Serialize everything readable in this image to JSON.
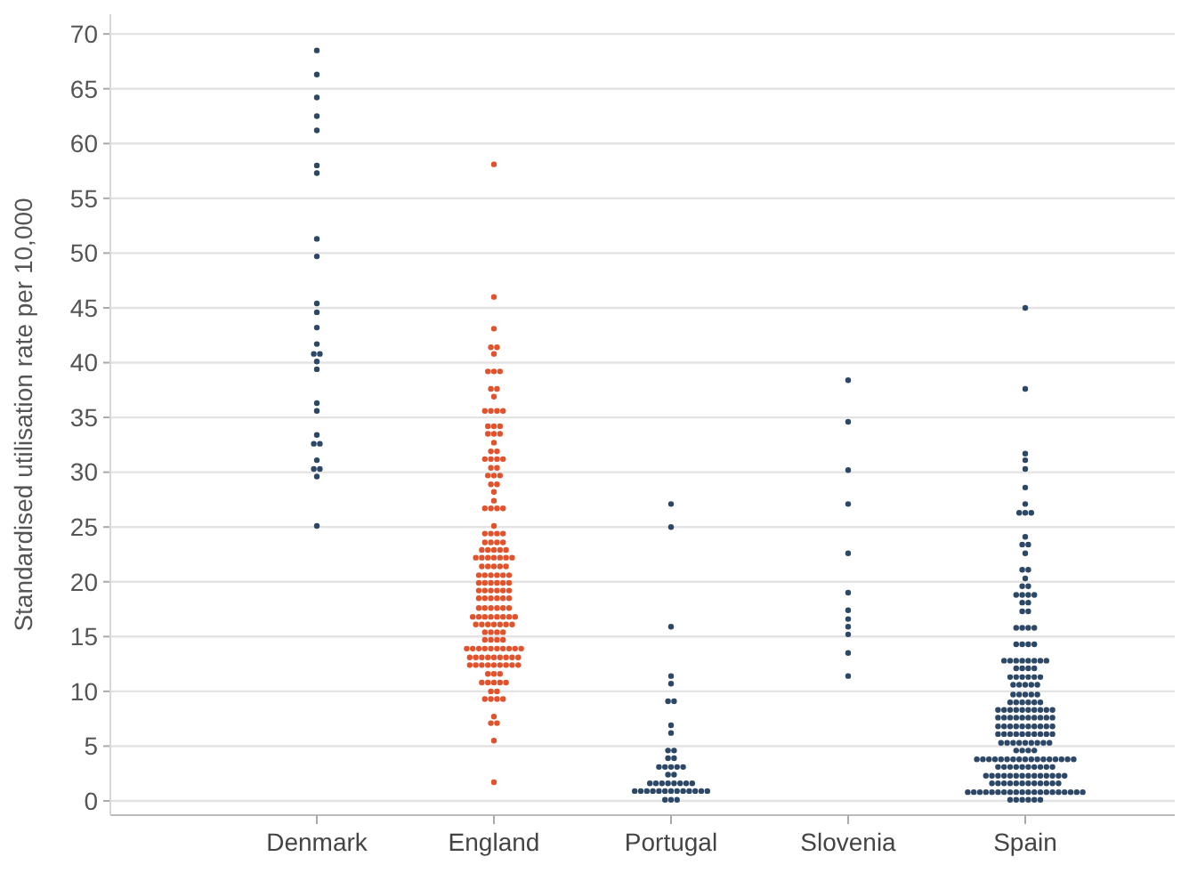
{
  "chart_data": {
    "type": "scatter",
    "ylabel": "Standardised utilisation rate per 10,000",
    "categories": [
      "Denmark",
      "England",
      "Portugal",
      "Slovenia",
      "Spain"
    ],
    "ylim": [
      -1.3,
      71.8
    ],
    "yticks": [
      0,
      5,
      10,
      15,
      20,
      25,
      30,
      35,
      40,
      45,
      50,
      55,
      60,
      65,
      70
    ],
    "grid": "y",
    "marker": "circle",
    "series": [
      {
        "color": "#2d4866",
        "x": [
          "Denmark",
          "Denmark",
          "Denmark",
          "Denmark",
          "Denmark",
          "Denmark",
          "Denmark",
          "Denmark",
          "Denmark",
          "Denmark",
          "Denmark",
          "Denmark",
          "Denmark",
          "Denmark",
          "Denmark",
          "Denmark",
          "Denmark",
          "Denmark",
          "Denmark",
          "Denmark",
          "Denmark",
          "Denmark",
          "Denmark",
          "Denmark",
          "Denmark",
          "Denmark",
          "Denmark"
        ],
        "values": [
          68.5,
          66.3,
          64.2,
          62.5,
          61.2,
          58.0,
          57.3,
          51.3,
          49.7,
          45.4,
          44.6,
          43.2,
          41.7,
          40.8,
          40.8,
          40.1,
          39.4,
          36.3,
          35.6,
          33.4,
          32.6,
          32.6,
          31.1,
          30.3,
          30.3,
          29.6,
          25.1
        ]
      },
      {
        "color": "#e0532c",
        "x": [
          "England",
          "England",
          "England",
          "England",
          "England",
          "England",
          "England",
          "England",
          "England",
          "England",
          "England",
          "England",
          "England",
          "England",
          "England",
          "England",
          "England",
          "England",
          "England",
          "England",
          "England",
          "England",
          "England",
          "England",
          "England",
          "England",
          "England",
          "England",
          "England",
          "England",
          "England",
          "England",
          "England",
          "England",
          "England",
          "England",
          "England",
          "England",
          "England",
          "England",
          "England",
          "England",
          "England",
          "England",
          "England",
          "England",
          "England",
          "England",
          "England",
          "England",
          "England",
          "England",
          "England",
          "England",
          "England",
          "England",
          "England",
          "England",
          "England",
          "England",
          "England",
          "England",
          "England",
          "England",
          "England",
          "England",
          "England",
          "England",
          "England",
          "England",
          "England",
          "England",
          "England",
          "England",
          "England",
          "England",
          "England",
          "England",
          "England",
          "England",
          "England",
          "England",
          "England",
          "England",
          "England",
          "England",
          "England",
          "England",
          "England",
          "England",
          "England",
          "England",
          "England",
          "England",
          "England",
          "England",
          "England",
          "England",
          "England",
          "England",
          "England",
          "England",
          "England",
          "England",
          "England",
          "England",
          "England",
          "England",
          "England",
          "England",
          "England",
          "England",
          "England",
          "England",
          "England",
          "England",
          "England",
          "England",
          "England",
          "England",
          "England",
          "England",
          "England",
          "England",
          "England",
          "England",
          "England",
          "England",
          "England",
          "England",
          "England",
          "England",
          "England",
          "England",
          "England",
          "England",
          "England",
          "England",
          "England",
          "England",
          "England",
          "England",
          "England",
          "England",
          "England",
          "England",
          "England",
          "England",
          "England",
          "England",
          "England",
          "England",
          "England",
          "England",
          "England",
          "England",
          "England",
          "England",
          "England",
          "England",
          "England",
          "England",
          "England",
          "England",
          "England",
          "England",
          "England",
          "England"
        ],
        "values": [
          58.1,
          46.0,
          43.1,
          41.4,
          41.4,
          40.8,
          39.2,
          39.2,
          39.2,
          37.6,
          37.6,
          36.9,
          35.6,
          35.6,
          35.6,
          35.6,
          34.2,
          34.2,
          34.2,
          33.5,
          33.5,
          33.5,
          32.7,
          31.9,
          31.9,
          31.2,
          31.2,
          31.2,
          31.2,
          30.4,
          30.4,
          29.7,
          29.7,
          29.7,
          28.9,
          28.9,
          28.2,
          27.4,
          26.7,
          26.7,
          26.7,
          26.7,
          25.1,
          24.4,
          24.4,
          24.4,
          24.4,
          23.6,
          23.6,
          23.6,
          23.6,
          22.9,
          22.9,
          22.9,
          22.9,
          22.9,
          22.2,
          22.2,
          22.2,
          22.2,
          22.2,
          22.2,
          22.2,
          21.4,
          21.4,
          21.4,
          21.4,
          21.4,
          20.6,
          20.6,
          20.6,
          20.6,
          20.6,
          20.6,
          19.9,
          19.9,
          19.9,
          19.9,
          19.9,
          19.9,
          19.2,
          19.2,
          19.2,
          19.2,
          19.2,
          19.2,
          18.5,
          18.5,
          18.5,
          18.5,
          18.5,
          18.5,
          17.6,
          17.6,
          17.6,
          17.6,
          17.6,
          17.6,
          16.8,
          16.8,
          16.8,
          16.8,
          16.8,
          16.8,
          16.8,
          16.8,
          16.1,
          16.1,
          16.1,
          16.1,
          16.1,
          16.1,
          16.1,
          15.4,
          15.4,
          15.4,
          15.4,
          14.7,
          14.7,
          14.7,
          14.7,
          13.9,
          13.9,
          13.9,
          13.9,
          13.9,
          13.9,
          13.9,
          13.9,
          13.9,
          13.9,
          13.1,
          13.1,
          13.1,
          13.1,
          13.1,
          13.1,
          13.1,
          13.1,
          13.1,
          12.4,
          12.4,
          12.4,
          12.4,
          12.4,
          12.4,
          12.4,
          12.4,
          12.4,
          11.6,
          11.6,
          11.6,
          10.8,
          10.8,
          10.8,
          10.8,
          10.8,
          10.0,
          10.0,
          9.3,
          9.3,
          9.3,
          9.3,
          7.7,
          7.1,
          7.1,
          5.5,
          1.7
        ]
      },
      {
        "color": "#2d4866",
        "x": [
          "Portugal",
          "Portugal",
          "Portugal",
          "Portugal",
          "Portugal",
          "Portugal",
          "Portugal",
          "Portugal",
          "Portugal",
          "Portugal",
          "Portugal",
          "Portugal",
          "Portugal",
          "Portugal",
          "Portugal",
          "Portugal",
          "Portugal",
          "Portugal",
          "Portugal",
          "Portugal",
          "Portugal",
          "Portugal",
          "Portugal",
          "Portugal",
          "Portugal",
          "Portugal",
          "Portugal",
          "Portugal",
          "Portugal",
          "Portugal",
          "Portugal",
          "Portugal",
          "Portugal",
          "Portugal",
          "Portugal",
          "Portugal",
          "Portugal",
          "Portugal",
          "Portugal",
          "Portugal",
          "Portugal",
          "Portugal",
          "Portugal",
          "Portugal"
        ],
        "values": [
          27.1,
          25.0,
          15.9,
          11.4,
          10.7,
          9.1,
          9.1,
          6.9,
          6.2,
          4.6,
          4.6,
          3.9,
          3.9,
          3.1,
          3.1,
          3.1,
          3.1,
          3.1,
          2.4,
          2.4,
          1.6,
          1.6,
          1.6,
          1.6,
          1.6,
          1.6,
          1.6,
          1.6,
          0.9,
          0.9,
          0.9,
          0.9,
          0.9,
          0.9,
          0.9,
          0.9,
          0.9,
          0.9,
          0.9,
          0.9,
          0.9,
          0.1,
          0.1,
          0.1
        ]
      },
      {
        "color": "#2d4866",
        "x": [
          "Slovenia",
          "Slovenia",
          "Slovenia",
          "Slovenia",
          "Slovenia",
          "Slovenia",
          "Slovenia",
          "Slovenia",
          "Slovenia",
          "Slovenia",
          "Slovenia",
          "Slovenia"
        ],
        "values": [
          38.4,
          34.6,
          30.2,
          27.1,
          22.6,
          19.0,
          17.4,
          16.6,
          15.9,
          15.2,
          13.5,
          11.4
        ]
      },
      {
        "color": "#2d4866",
        "x": [
          "Spain",
          "Spain",
          "Spain",
          "Spain",
          "Spain",
          "Spain",
          "Spain",
          "Spain",
          "Spain",
          "Spain",
          "Spain",
          "Spain",
          "Spain",
          "Spain",
          "Spain",
          "Spain",
          "Spain",
          "Spain",
          "Spain",
          "Spain",
          "Spain",
          "Spain",
          "Spain",
          "Spain",
          "Spain",
          "Spain",
          "Spain",
          "Spain",
          "Spain",
          "Spain",
          "Spain",
          "Spain",
          "Spain",
          "Spain",
          "Spain",
          "Spain",
          "Spain",
          "Spain",
          "Spain",
          "Spain",
          "Spain",
          "Spain",
          "Spain",
          "Spain",
          "Spain",
          "Spain",
          "Spain",
          "Spain",
          "Spain",
          "Spain",
          "Spain",
          "Spain",
          "Spain",
          "Spain",
          "Spain",
          "Spain",
          "Spain",
          "Spain",
          "Spain",
          "Spain",
          "Spain",
          "Spain",
          "Spain",
          "Spain",
          "Spain",
          "Spain",
          "Spain",
          "Spain",
          "Spain",
          "Spain",
          "Spain",
          "Spain",
          "Spain",
          "Spain",
          "Spain",
          "Spain",
          "Spain",
          "Spain",
          "Spain",
          "Spain",
          "Spain",
          "Spain",
          "Spain",
          "Spain",
          "Spain",
          "Spain",
          "Spain",
          "Spain",
          "Spain",
          "Spain",
          "Spain",
          "Spain",
          "Spain",
          "Spain",
          "Spain",
          "Spain",
          "Spain",
          "Spain",
          "Spain",
          "Spain",
          "Spain",
          "Spain",
          "Spain",
          "Spain",
          "Spain",
          "Spain",
          "Spain",
          "Spain",
          "Spain",
          "Spain",
          "Spain",
          "Spain",
          "Spain",
          "Spain",
          "Spain",
          "Spain",
          "Spain",
          "Spain",
          "Spain",
          "Spain",
          "Spain",
          "Spain",
          "Spain",
          "Spain",
          "Spain",
          "Spain",
          "Spain",
          "Spain",
          "Spain",
          "Spain",
          "Spain",
          "Spain",
          "Spain",
          "Spain",
          "Spain",
          "Spain",
          "Spain",
          "Spain",
          "Spain",
          "Spain",
          "Spain",
          "Spain",
          "Spain",
          "Spain",
          "Spain",
          "Spain",
          "Spain",
          "Spain",
          "Spain",
          "Spain",
          "Spain",
          "Spain",
          "Spain",
          "Spain",
          "Spain",
          "Spain",
          "Spain",
          "Spain",
          "Spain",
          "Spain",
          "Spain",
          "Spain",
          "Spain",
          "Spain",
          "Spain",
          "Spain",
          "Spain",
          "Spain",
          "Spain",
          "Spain",
          "Spain",
          "Spain",
          "Spain",
          "Spain",
          "Spain",
          "Spain",
          "Spain",
          "Spain",
          "Spain",
          "Spain",
          "Spain",
          "Spain",
          "Spain",
          "Spain",
          "Spain",
          "Spain",
          "Spain",
          "Spain",
          "Spain",
          "Spain",
          "Spain",
          "Spain",
          "Spain",
          "Spain",
          "Spain",
          "Spain",
          "Spain",
          "Spain",
          "Spain",
          "Spain",
          "Spain"
        ],
        "values": [
          45.0,
          37.6,
          31.7,
          31.1,
          30.3,
          28.6,
          27.1,
          26.3,
          26.3,
          26.3,
          24.1,
          23.4,
          23.4,
          22.6,
          21.1,
          21.1,
          20.3,
          19.6,
          19.6,
          18.8,
          18.8,
          18.8,
          18.8,
          18.1,
          18.1,
          17.3,
          17.3,
          15.8,
          15.8,
          15.8,
          15.8,
          14.3,
          14.3,
          14.3,
          14.3,
          12.8,
          12.8,
          12.8,
          12.8,
          12.8,
          12.8,
          12.8,
          12.8,
          12.1,
          12.1,
          12.1,
          12.1,
          11.3,
          11.3,
          11.3,
          11.3,
          11.3,
          11.3,
          10.6,
          10.6,
          10.6,
          10.6,
          10.6,
          9.7,
          9.7,
          9.7,
          9.7,
          9.7,
          9.0,
          9.0,
          9.0,
          9.0,
          9.0,
          9.0,
          8.3,
          8.3,
          8.3,
          8.3,
          8.3,
          8.3,
          8.3,
          8.3,
          8.3,
          8.3,
          7.6,
          7.6,
          7.6,
          7.6,
          7.6,
          7.6,
          7.6,
          7.6,
          7.6,
          7.6,
          6.8,
          6.8,
          6.8,
          6.8,
          6.8,
          6.8,
          6.8,
          6.8,
          6.8,
          6.8,
          6.1,
          6.1,
          6.1,
          6.1,
          6.1,
          6.1,
          6.1,
          6.1,
          6.1,
          6.1,
          5.3,
          5.3,
          5.3,
          5.3,
          5.3,
          5.3,
          5.3,
          5.3,
          5.3,
          4.6,
          4.6,
          4.6,
          4.6,
          3.8,
          3.8,
          3.8,
          3.8,
          3.8,
          3.8,
          3.8,
          3.8,
          3.8,
          3.8,
          3.8,
          3.8,
          3.8,
          3.8,
          3.8,
          3.8,
          3.8,
          3.1,
          3.1,
          3.1,
          3.1,
          3.1,
          3.1,
          3.1,
          3.1,
          3.1,
          3.1,
          2.3,
          2.3,
          2.3,
          2.3,
          2.3,
          2.3,
          2.3,
          2.3,
          2.3,
          2.3,
          2.3,
          2.3,
          2.3,
          2.3,
          1.6,
          1.6,
          1.6,
          1.6,
          1.6,
          1.6,
          1.6,
          1.6,
          1.6,
          1.6,
          1.6,
          1.6,
          0.8,
          0.8,
          0.8,
          0.8,
          0.8,
          0.8,
          0.8,
          0.8,
          0.8,
          0.8,
          0.8,
          0.8,
          0.8,
          0.8,
          0.8,
          0.8,
          0.8,
          0.8,
          0.8,
          0.8,
          0.1,
          0.1,
          0.1,
          0.1,
          0.1,
          0.1
        ]
      }
    ]
  }
}
